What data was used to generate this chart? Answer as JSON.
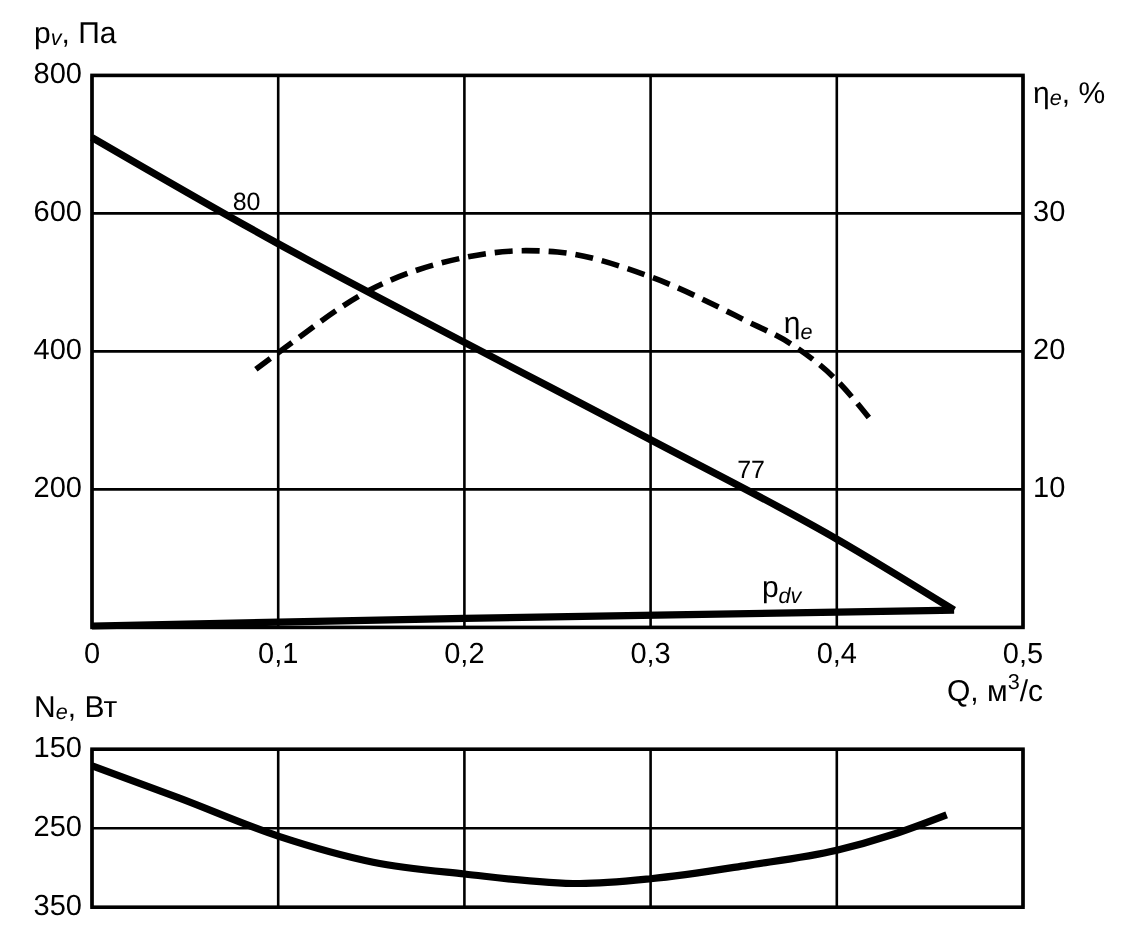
{
  "chart_data": [
    {
      "type": "line",
      "xlabel": "Q, м$^{3}$/с",
      "ylabel": "p$_{v}$, Па",
      "y2label": "η$_{e}$, %",
      "xlim": [
        0,
        0.5
      ],
      "xticks": [
        0,
        {
          "value": 0.1,
          "label": "0,1"
        },
        {
          "value": 0.2,
          "label": "0,2"
        },
        {
          "value": 0.3,
          "label": "0,3"
        },
        {
          "value": 0.4,
          "label": "0,4"
        },
        {
          "value": 0.5,
          "label": "0,5"
        }
      ],
      "ylim": [
        0,
        800
      ],
      "yticks": [
        200,
        400,
        600,
        800
      ],
      "y2lim": [
        0,
        40
      ],
      "y2ticks": [
        10,
        20,
        30
      ],
      "grid": true,
      "annotations": [
        {
          "text": "80",
          "x": 0.083,
          "y": 582
        },
        {
          "text": "77",
          "x": 0.354,
          "y": 193
        }
      ],
      "series": [
        {
          "color": "#000000",
          "x": [
            0,
            0.1,
            0.2,
            0.3,
            0.4,
            0.463
          ],
          "values": [
            710,
            556,
            413,
            272,
            128,
            25
          ]
        },
        {
          "name": "p$_{dv}$",
          "color": "#000000",
          "x": [
            0,
            0.2,
            0.4,
            0.463
          ],
          "values": [
            2,
            13,
            22,
            25
          ]
        },
        {
          "name": "η$_{e}$",
          "color": "#000000",
          "axis": "y2",
          "line_style": "dashed",
          "x": [
            0.088,
            0.1,
            0.15,
            0.2,
            0.233,
            0.25,
            0.3,
            0.35,
            0.377,
            0.4,
            0.419
          ],
          "values": [
            18.7,
            19.9,
            24.5,
            26.8,
            27.3,
            27.2,
            25.4,
            22.3,
            20.4,
            17.9,
            14.9
          ]
        }
      ]
    },
    {
      "type": "line",
      "ylabel": "N$_{e}$, Вт",
      "xlim": [
        0,
        0.5
      ],
      "xticks": [
        {
          "value": 0,
          "label": null
        },
        {
          "value": 0.1,
          "label": null
        },
        {
          "value": 0.2,
          "label": null
        },
        {
          "value": 0.3,
          "label": null
        },
        {
          "value": 0.4,
          "label": null
        },
        {
          "value": 0.5,
          "label": null
        }
      ],
      "ylim": [
        350,
        150
      ],
      "yticks": [
        150,
        250,
        350
      ],
      "grid": true,
      "tick_labels": "y",
      "series": [
        {
          "color": "#000000",
          "x": [
            0,
            0.047,
            0.1,
            0.151,
            0.2,
            0.262,
            0.3,
            0.352,
            0.4,
            0.43,
            0.459
          ],
          "values": [
            171,
            212,
            260,
            293,
            308,
            320,
            314,
            297,
            278,
            258,
            233
          ]
        }
      ]
    }
  ]
}
